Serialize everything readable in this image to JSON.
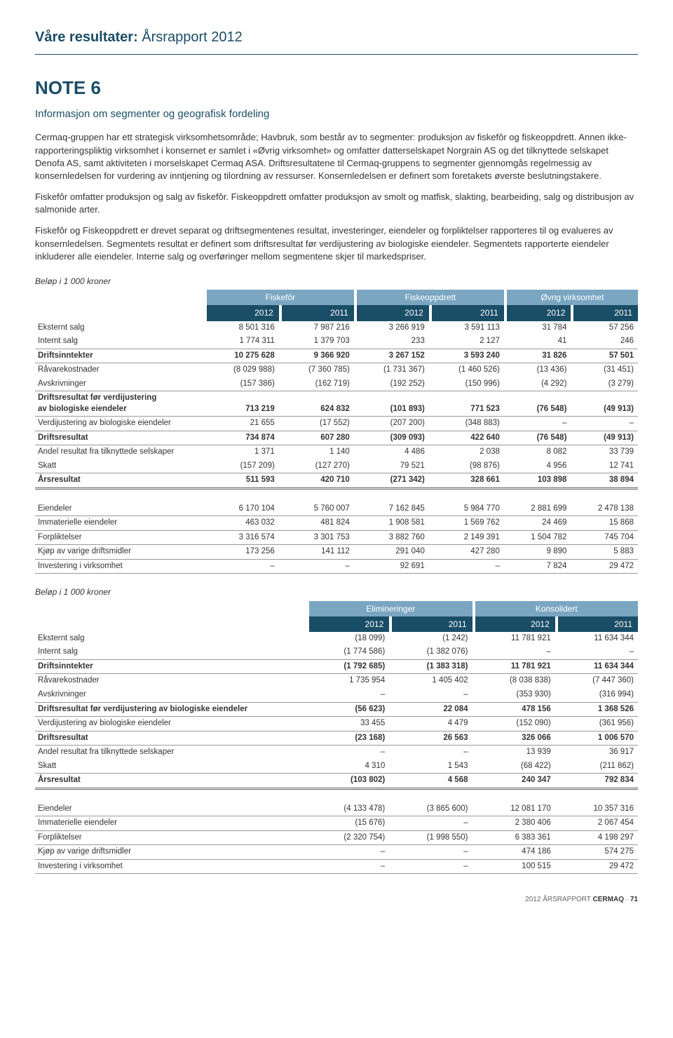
{
  "header": {
    "bold": "Våre resultater:",
    "light": " Årsrapport 2012"
  },
  "note": {
    "title": "NOTE 6",
    "subtitle": "Informasjon om segmenter og geografisk fordeling"
  },
  "paragraphs": [
    "Cermaq-gruppen har ett strategisk virksomhetsområde; Havbruk, som består av to segmenter: produksjon av fiskefôr og fiskeoppdrett. Annen ikke-rapporteringspliktig virksomhet i konsernet er samlet i «Øvrig virksomhet» og omfatter datterselskapet Norgrain AS og det tilknyttede selskapet Denofa AS, samt aktiviteten i morselskapet Cermaq ASA. Driftsresultatene til Cermaq-gruppens to segmenter gjennomgås regelmessig av konsernledelsen for vurdering av inntjening og tilordning av ressurser. Konsernledelsen er definert som foretakets øverste beslutningstakere.",
    "Fiskefôr omfatter produksjon og salg av fiskefôr. Fiskeoppdrett omfatter produksjon av smolt og matfisk, slakting, bearbeiding, salg og distribusjon av salmonide arter.",
    "Fiskefôr og Fiskeoppdrett er drevet separat og driftsegmentenes resultat, investeringer, eiendeler og forpliktelser rapporteres til og evalueres av konsernledelsen. Segmentets resultat er definert som driftsresultat før verdijustering av biologiske eiendeler. Segmentets rapporterte eiendeler inkluderer alle eiendeler. Interne salg og overføringer mellom segmentene skjer til markedspriser."
  ],
  "caption": "Beløp i  1 000 kroner",
  "table1": {
    "groups": [
      "Fiskefôr",
      "Fiskeoppdrett",
      "Øvrig virksomhet"
    ],
    "years": [
      "2012",
      "2011",
      "2012",
      "2011",
      "2012",
      "2011"
    ],
    "rows": [
      {
        "label": "Eksternt salg",
        "vals": [
          "8 501 316",
          "7 987 216",
          "3 266 919",
          "3 591 113",
          "31 784",
          "57 256"
        ],
        "style": "plain"
      },
      {
        "label": "Internt salg",
        "vals": [
          "1 774 311",
          "1 379 703",
          "233",
          "2 127",
          "41",
          "246"
        ],
        "style": "border"
      },
      {
        "label": "Driftsinntekter",
        "vals": [
          "10 275 628",
          "9 366 920",
          "3 267 152",
          "3 593 240",
          "31 826",
          "57 501"
        ],
        "style": "bold-border"
      },
      {
        "label": "Råvarekostnader",
        "vals": [
          "(8 029 988)",
          "(7 360 785)",
          "(1 731 367)",
          "(1 460 526)",
          "(13 436)",
          "(31 451)"
        ],
        "style": "plain"
      },
      {
        "label": "Avskrivninger",
        "vals": [
          "(157 386)",
          "(162 719)",
          "(192 252)",
          "(150 996)",
          "(4 292)",
          "(3 279)"
        ],
        "style": "border"
      },
      {
        "label": "Driftsresultat før verdijustering av biologiske eiendeler",
        "vals": [
          "713 219",
          "624 832",
          "(101 893)",
          "771 523",
          "(76 548)",
          "(49 913)"
        ],
        "style": "bold-border",
        "multiline": true
      },
      {
        "label": "Verdijustering av biologiske eiendeler",
        "vals": [
          "21 655",
          "(17 552)",
          "(207 200)",
          "(348 883)",
          "–",
          "–"
        ],
        "style": "border"
      },
      {
        "label": "Driftsresultat",
        "vals": [
          "734 874",
          "607 280",
          "(309 093)",
          "422 640",
          "(76 548)",
          "(49 913)"
        ],
        "style": "bold-border"
      },
      {
        "label": "Andel resultat fra tilknyttede selskaper",
        "vals": [
          "1 371",
          "1 140",
          "4 486",
          "2 038",
          "8 082",
          "33 739"
        ],
        "style": "plain"
      },
      {
        "label": "Skatt",
        "vals": [
          "(157 209)",
          "(127 270)",
          "79 521",
          "(98 876)",
          "4 956",
          "12 741"
        ],
        "style": "border"
      },
      {
        "label": "Årsresultat",
        "vals": [
          "511 593",
          "420 710",
          "(271 342)",
          "328 661",
          "103 898",
          "38 894"
        ],
        "style": "sum"
      }
    ],
    "rows2": [
      {
        "label": "Eiendeler",
        "vals": [
          "6 170 104",
          "5 760 007",
          "7 162 845",
          "5 984 770",
          "2 881 699",
          "2 478 138"
        ]
      },
      {
        "label": "Immaterielle eiendeler",
        "vals": [
          "463 032",
          "481 824",
          "1 908 581",
          "1 569 762",
          "24 469",
          "15 868"
        ]
      },
      {
        "label": "Forpliktelser",
        "vals": [
          "3 316 574",
          "3 301 753",
          "3 882 760",
          "2 149 391",
          "1 504 782",
          "745 704"
        ]
      },
      {
        "label": "Kjøp av varige driftsmidler",
        "vals": [
          "173 256",
          "141 112",
          "291 040",
          "427 280",
          "9 890",
          "5 883"
        ]
      },
      {
        "label": "Investering i virksomhet",
        "vals": [
          "–",
          "–",
          "92 691",
          "–",
          "7 824",
          "29 472"
        ]
      }
    ]
  },
  "table2": {
    "groups": [
      "Elimineringer",
      "Konsolidert"
    ],
    "years": [
      "2012",
      "2011",
      "2012",
      "2011"
    ],
    "rows": [
      {
        "label": "Eksternt salg",
        "vals": [
          "(18 099)",
          "(1 242)",
          "11 781 921",
          "11 634 344"
        ],
        "style": "plain"
      },
      {
        "label": "Internt salg",
        "vals": [
          "(1 774 586)",
          "(1 382 076)",
          "–",
          "–"
        ],
        "style": "border"
      },
      {
        "label": "Driftsinntekter",
        "vals": [
          "(1 792 685)",
          "(1 383 318)",
          "11 781 921",
          "11 634 344"
        ],
        "style": "bold-border"
      },
      {
        "label": "Råvarekostnader",
        "vals": [
          "1 735 954",
          "1 405 402",
          "(8 038 838)",
          "(7 447 360)"
        ],
        "style": "plain"
      },
      {
        "label": "Avskrivninger",
        "vals": [
          "–",
          "–",
          "(353 930)",
          "(316 994)"
        ],
        "style": "border"
      },
      {
        "label": "Driftsresultat før verdijustering av biologiske eiendeler",
        "vals": [
          "(56 623)",
          "22 084",
          "478 156",
          "1 368 526"
        ],
        "style": "bold-border"
      },
      {
        "label": "Verdijustering av biologiske eiendeler",
        "vals": [
          "33 455",
          "4 479",
          "(152 090)",
          "(361 956)"
        ],
        "style": "border"
      },
      {
        "label": "Driftsresultat",
        "vals": [
          "(23 168)",
          "26 563",
          "326 066",
          "1 006 570"
        ],
        "style": "bold-border"
      },
      {
        "label": "Andel resultat fra tilknyttede selskaper",
        "vals": [
          "–",
          "–",
          "13 939",
          "36 917"
        ],
        "style": "plain"
      },
      {
        "label": "Skatt",
        "vals": [
          "4 310",
          "1 543",
          "(68 422)",
          "(211 862)"
        ],
        "style": "border"
      },
      {
        "label": "Årsresultat",
        "vals": [
          "(103 802)",
          "4 568",
          "240 347",
          "792 834"
        ],
        "style": "sum"
      }
    ],
    "rows2": [
      {
        "label": "Eiendeler",
        "vals": [
          "(4 133 478)",
          "(3 865 600)",
          "12 081 170",
          "10 357 316"
        ]
      },
      {
        "label": "Immaterielle eiendeler",
        "vals": [
          "(15 676)",
          "–",
          "2 380 406",
          "2 067 454"
        ]
      },
      {
        "label": "Forpliktelser",
        "vals": [
          "(2 320 754)",
          "(1 998 550)",
          "6 383 361",
          "4 198 297"
        ]
      },
      {
        "label": "Kjøp av varige driftsmidler",
        "vals": [
          "–",
          "–",
          "474 186",
          "574 275"
        ]
      },
      {
        "label": "Investering i virksomhet",
        "vals": [
          "–",
          "–",
          "100 515",
          "29 472"
        ]
      }
    ]
  },
  "footer": {
    "text": "2012 ÅRSRAPPORT",
    "brand": "CERMAQ",
    "sep": " · ",
    "page": "71"
  }
}
